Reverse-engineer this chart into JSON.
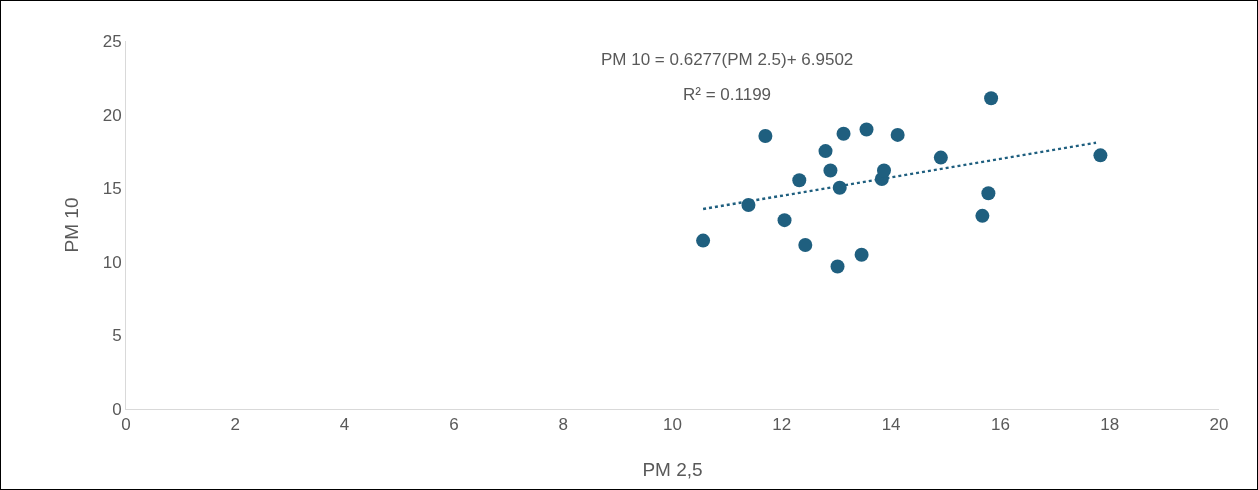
{
  "chart_data": {
    "type": "scatter",
    "xlabel": "PM 2,5",
    "ylabel": "PM 10",
    "xlim": [
      0,
      20
    ],
    "xticks": [
      0,
      2,
      4,
      6,
      8,
      10,
      12,
      14,
      16,
      18,
      20
    ],
    "ylim": [
      0,
      25
    ],
    "yticks": [
      0,
      5,
      10,
      15,
      20,
      25
    ],
    "grid": false,
    "marker": "circle",
    "annotations": [
      "PM 10 = 0.6277(PM 2.5)+ 6.9502",
      "R² = 0.1199"
    ],
    "series": [
      {
        "color": "#1f5f7f",
        "x": [
          10.56,
          11.39,
          11.7,
          12.05,
          12.32,
          12.43,
          12.8,
          12.89,
          13.02,
          13.06,
          13.13,
          13.46,
          13.55,
          13.83,
          13.87,
          14.12,
          14.91,
          15.67,
          15.78,
          15.83,
          17.83
        ],
        "values": [
          11.44,
          13.86,
          18.55,
          12.83,
          15.54,
          11.14,
          17.52,
          16.2,
          9.68,
          15.03,
          18.7,
          10.48,
          18.99,
          15.62,
          16.2,
          18.62,
          17.08,
          13.12,
          14.66,
          21.11,
          17.23
        ]
      },
      {
        "type": "line",
        "color": "#1f5f7f",
        "line_style": "dotted",
        "marker": "none",
        "x": [
          10.56,
          17.75
        ],
        "values": [
          13.58,
          18.09
        ]
      }
    ]
  }
}
